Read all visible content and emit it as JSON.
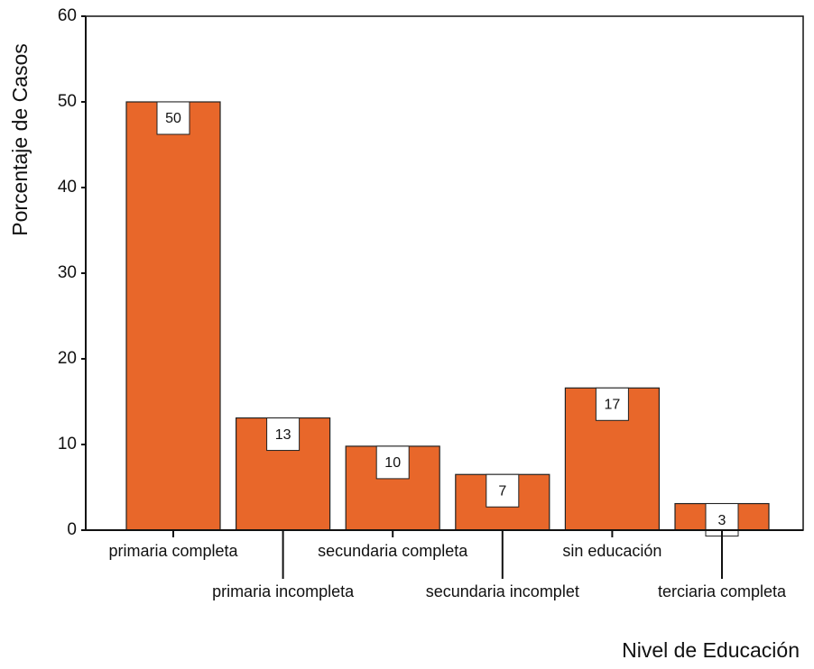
{
  "chart_data": {
    "type": "bar",
    "x_label": "Nivel de Educación",
    "y_label": "Porcentaje de Casos",
    "categories": [
      "primaria completa",
      "primaria incompleta",
      "secundaria completa",
      "secundaria incomplet",
      "sin educación",
      "terciaria completa"
    ],
    "values": [
      50,
      13.1,
      9.8,
      6.5,
      16.6,
      3.1
    ],
    "value_labels": [
      "50",
      "13",
      "10",
      "7",
      "17",
      "3"
    ],
    "color": "#e8672a",
    "ylim": [
      0,
      60
    ],
    "yticks": [
      0,
      10,
      20,
      30,
      40,
      50,
      60
    ]
  }
}
